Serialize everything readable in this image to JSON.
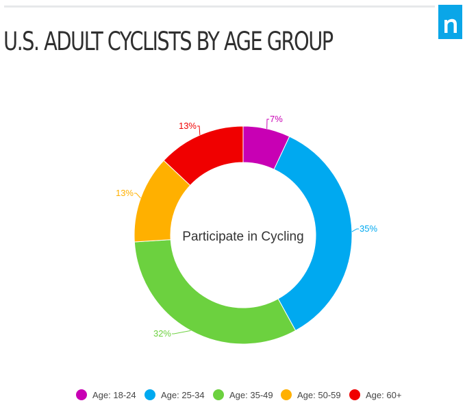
{
  "title": "U.S. ADULT CYCLISTS BY AGE GROUP",
  "brand": {
    "name": "nielsen-logo",
    "letter": "n",
    "color": "#0aa6e8"
  },
  "chart_data": {
    "type": "pie",
    "variant": "donut",
    "center_label": "Participate in Cycling",
    "categories": [
      "Age: 18-24",
      "Age: 25-34",
      "Age: 35-49",
      "Age: 50-59",
      "Age: 60+"
    ],
    "values": [
      7,
      35,
      32,
      13,
      13
    ],
    "labels": [
      "7%",
      "35%",
      "32%",
      "13%",
      "13%"
    ],
    "colors": [
      "#c800b4",
      "#00a9f0",
      "#6cd13f",
      "#ffb000",
      "#f00000"
    ],
    "legend_position": "bottom",
    "start_angle_deg": 0,
    "direction": "clockwise"
  }
}
